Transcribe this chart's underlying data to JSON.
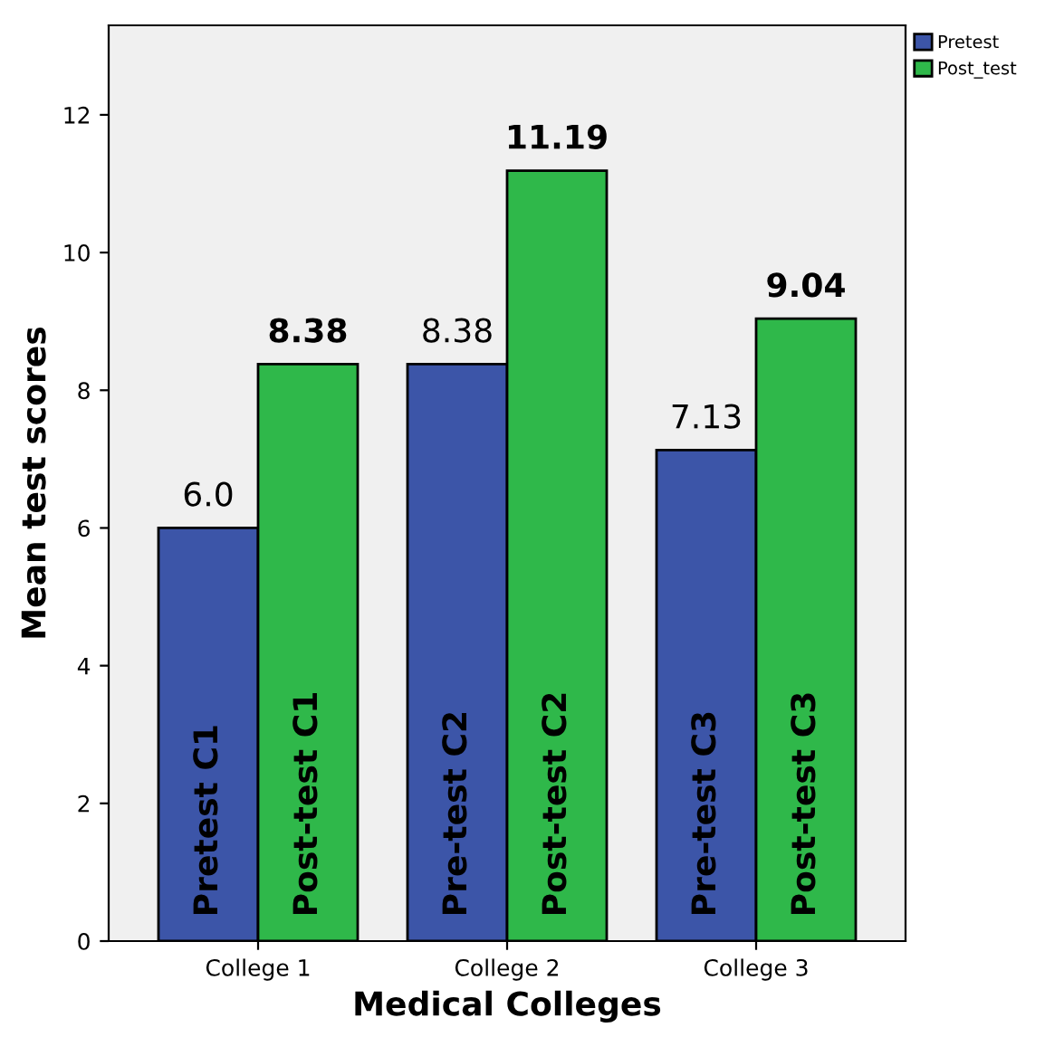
{
  "chart_data": {
    "type": "bar",
    "xlabel": "Medical Colleges",
    "ylabel": "Mean test scores",
    "categories": [
      "College 1",
      "College 2",
      "College 3"
    ],
    "series": [
      {
        "name": "Pretest",
        "color": "#3c55a8",
        "values": [
          6.0,
          8.38,
          7.13
        ],
        "value_labels": [
          "6.0",
          "8.38",
          "7.13"
        ]
      },
      {
        "name": "Post_test",
        "color": "#2fb84a",
        "values": [
          8.38,
          11.19,
          9.04
        ],
        "value_labels": [
          "8.38",
          "11.19",
          "9.04"
        ]
      }
    ],
    "annotations": [
      "Pretest C1",
      "Post-test C1",
      "Pre-test C2",
      "Post-test C2",
      "Pre-test C3",
      "Post-test C3"
    ],
    "ylim": [
      0,
      13.3
    ],
    "yticks": [
      0,
      2,
      4,
      6,
      8,
      10,
      12
    ],
    "grid": false,
    "legend": "top right"
  }
}
